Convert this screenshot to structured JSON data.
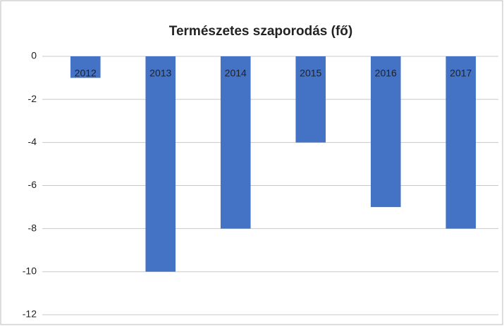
{
  "chart_data": {
    "type": "bar",
    "title": "Természetes szaporodás (fő)",
    "categories": [
      "2012",
      "2013",
      "2014",
      "2015",
      "2016",
      "2017"
    ],
    "values": [
      -1,
      -10,
      -8,
      -4,
      -7,
      -8
    ],
    "color": "#4472c4",
    "ylim": [
      -12,
      0
    ],
    "yticks": [
      0,
      -2,
      -4,
      -6,
      -8,
      -10,
      -12
    ],
    "grid": true
  }
}
